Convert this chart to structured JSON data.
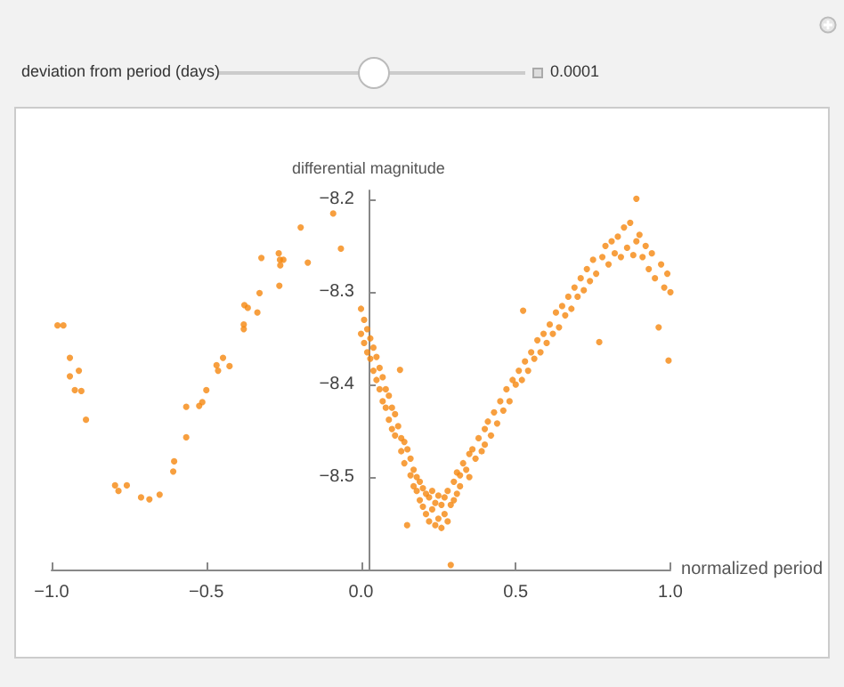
{
  "chart_data": {
    "type": "scatter",
    "xlabel": "normalized period",
    "ylabel": "differential magnitude",
    "annotations": [
      "deviation from period (days)",
      "0.0001"
    ],
    "color": "#f5870f",
    "marker": "circle",
    "grid": false,
    "xlim": [
      -1,
      1
    ],
    "ylim": [
      -8.6,
      -8.19
    ],
    "xticks": [
      {
        "value": -1,
        "label": "−1.0"
      },
      {
        "value": -0.5,
        "label": "−0.5"
      },
      {
        "value": 0,
        "label": "0.0"
      },
      {
        "value": 0.5,
        "label": "0.5"
      },
      {
        "value": 1,
        "label": "1.0"
      }
    ],
    "yticks": [
      {
        "value": -8.5,
        "label": "−8.5"
      },
      {
        "value": -8.4,
        "label": "−8.4"
      },
      {
        "value": -8.3,
        "label": "−8.3"
      },
      {
        "value": -8.2,
        "label": "−8.2"
      }
    ],
    "x": [
      -0.981,
      -0.962,
      -0.941,
      -0.941,
      -0.912,
      -0.925,
      -0.904,
      -0.889,
      -0.795,
      -0.784,
      -0.757,
      -0.711,
      -0.684,
      -0.651,
      -0.607,
      -0.604,
      -0.565,
      -0.565,
      -0.523,
      -0.513,
      -0.5,
      -0.467,
      -0.462,
      -0.446,
      -0.425,
      -0.379,
      -0.379,
      -0.377,
      -0.366,
      -0.335,
      -0.328,
      -0.322,
      -0.266,
      -0.262,
      -0.251,
      -0.261,
      -0.264,
      -0.195,
      -0.172,
      -0.09,
      -0.065,
      0,
      0,
      0.01,
      0.01,
      0.02,
      0.02,
      0.03,
      0.03,
      0.04,
      0.04,
      0.05,
      0.05,
      0.06,
      0.06,
      0.07,
      0.07,
      0.08,
      0.08,
      0.09,
      0.09,
      0.1,
      0.1,
      0.11,
      0.11,
      0.12,
      0.126,
      0.13,
      0.13,
      0.14,
      0.14,
      0.149,
      0.15,
      0.16,
      0.16,
      0.17,
      0.17,
      0.18,
      0.18,
      0.19,
      0.19,
      0.2,
      0.2,
      0.21,
      0.21,
      0.22,
      0.22,
      0.23,
      0.23,
      0.24,
      0.24,
      0.25,
      0.25,
      0.26,
      0.26,
      0.27,
      0.27,
      0.28,
      0.28,
      0.29,
      0.29,
      0.3,
      0.3,
      0.31,
      0.31,
      0.32,
      0.32,
      0.33,
      0.34,
      0.35,
      0.35,
      0.36,
      0.37,
      0.38,
      0.39,
      0.4,
      0.4,
      0.41,
      0.42,
      0.43,
      0.44,
      0.45,
      0.46,
      0.47,
      0.48,
      0.49,
      0.5,
      0.51,
      0.52,
      0.524,
      0.53,
      0.54,
      0.55,
      0.56,
      0.57,
      0.58,
      0.59,
      0.6,
      0.61,
      0.62,
      0.63,
      0.64,
      0.65,
      0.66,
      0.67,
      0.68,
      0.69,
      0.7,
      0.71,
      0.72,
      0.73,
      0.74,
      0.75,
      0.76,
      0.77,
      0.78,
      0.79,
      0.8,
      0.81,
      0.82,
      0.83,
      0.84,
      0.85,
      0.86,
      0.87,
      0.88,
      0.89,
      0.89,
      0.9,
      0.91,
      0.92,
      0.93,
      0.94,
      0.95,
      0.962,
      0.97,
      0.98,
      0.99,
      0.994,
      1
    ],
    "values": [
      -8.336,
      -8.336,
      -8.371,
      -8.391,
      -8.385,
      -8.406,
      -8.407,
      -8.438,
      -8.509,
      -8.515,
      -8.509,
      -8.522,
      -8.524,
      -8.519,
      -8.494,
      -8.483,
      -8.457,
      -8.424,
      -8.423,
      -8.419,
      -8.406,
      -8.379,
      -8.385,
      -8.371,
      -8.38,
      -8.335,
      -8.34,
      -8.314,
      -8.317,
      -8.322,
      -8.301,
      -8.263,
      -8.258,
      -8.265,
      -8.265,
      -8.271,
      -8.293,
      -8.23,
      -8.268,
      -8.215,
      -8.253,
      -8.318,
      -8.345,
      -8.33,
      -8.355,
      -8.34,
      -8.365,
      -8.35,
      -8.372,
      -8.36,
      -8.385,
      -8.37,
      -8.395,
      -8.382,
      -8.405,
      -8.392,
      -8.418,
      -8.405,
      -8.425,
      -8.412,
      -8.438,
      -8.425,
      -8.448,
      -8.432,
      -8.455,
      -8.445,
      -8.384,
      -8.458,
      -8.472,
      -8.462,
      -8.485,
      -8.552,
      -8.47,
      -8.48,
      -8.498,
      -8.492,
      -8.51,
      -8.5,
      -8.515,
      -8.505,
      -8.525,
      -8.512,
      -8.532,
      -8.518,
      -8.54,
      -8.522,
      -8.548,
      -8.515,
      -8.535,
      -8.528,
      -8.552,
      -8.52,
      -8.545,
      -8.53,
      -8.555,
      -8.522,
      -8.54,
      -8.515,
      -8.548,
      -8.595,
      -8.53,
      -8.505,
      -8.525,
      -8.495,
      -8.518,
      -8.498,
      -8.51,
      -8.485,
      -8.492,
      -8.475,
      -8.5,
      -8.47,
      -8.48,
      -8.458,
      -8.472,
      -8.448,
      -8.465,
      -8.44,
      -8.455,
      -8.43,
      -8.442,
      -8.418,
      -8.428,
      -8.405,
      -8.418,
      -8.395,
      -8.4,
      -8.385,
      -8.395,
      -8.32,
      -8.375,
      -8.385,
      -8.365,
      -8.372,
      -8.352,
      -8.365,
      -8.345,
      -8.355,
      -8.335,
      -8.345,
      -8.322,
      -8.338,
      -8.315,
      -8.325,
      -8.305,
      -8.318,
      -8.295,
      -8.305,
      -8.285,
      -8.298,
      -8.275,
      -8.288,
      -8.265,
      -8.28,
      -8.354,
      -8.262,
      -8.25,
      -8.27,
      -8.245,
      -8.258,
      -8.24,
      -8.262,
      -8.23,
      -8.252,
      -8.225,
      -8.26,
      -8.199,
      -8.245,
      -8.238,
      -8.262,
      -8.25,
      -8.275,
      -8.258,
      -8.285,
      -8.338,
      -8.27,
      -8.295,
      -8.28,
      -8.374,
      -8.3
    ]
  }
}
